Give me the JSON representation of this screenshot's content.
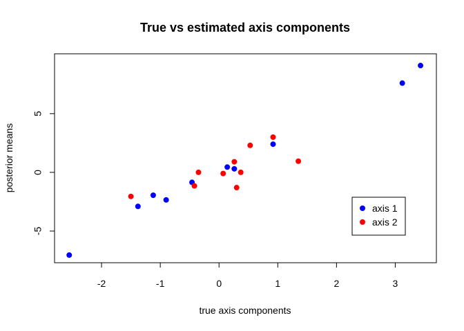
{
  "chart_data": {
    "type": "scatter",
    "title": "True vs estimated axis components",
    "xlabel": "true axis components",
    "ylabel": "posterior means",
    "xlim": [
      -2.8,
      3.7
    ],
    "ylim": [
      -7.7,
      10.1
    ],
    "x_ticks": [
      -2,
      -1,
      0,
      1,
      2,
      3
    ],
    "x_tick_labels": [
      "-2",
      "-1",
      "0",
      "1",
      "2",
      "3"
    ],
    "y_ticks": [
      -5,
      0,
      5
    ],
    "y_tick_labels": [
      "-5",
      "0",
      "5"
    ],
    "grid": false,
    "legend_position": "bottom-right",
    "series": [
      {
        "name": "axis 1",
        "color": "#0000ff",
        "points": [
          {
            "x": -2.55,
            "y": -7.05
          },
          {
            "x": -1.38,
            "y": -2.9
          },
          {
            "x": -1.12,
            "y": -1.95
          },
          {
            "x": -0.9,
            "y": -2.35
          },
          {
            "x": -0.46,
            "y": -0.85
          },
          {
            "x": 0.14,
            "y": 0.45
          },
          {
            "x": 0.26,
            "y": 0.3
          },
          {
            "x": 0.92,
            "y": 2.4
          },
          {
            "x": 3.12,
            "y": 7.6
          },
          {
            "x": 3.43,
            "y": 9.1
          }
        ]
      },
      {
        "name": "axis 2",
        "color": "#ff0000",
        "points": [
          {
            "x": -1.5,
            "y": -2.05
          },
          {
            "x": -0.42,
            "y": -1.15
          },
          {
            "x": -0.35,
            "y": 0.0
          },
          {
            "x": 0.07,
            "y": -0.1
          },
          {
            "x": 0.26,
            "y": 0.9
          },
          {
            "x": 0.3,
            "y": -1.3
          },
          {
            "x": 0.37,
            "y": 0.0
          },
          {
            "x": 0.53,
            "y": 2.3
          },
          {
            "x": 0.92,
            "y": 3.0
          },
          {
            "x": 1.35,
            "y": 0.95
          }
        ]
      }
    ]
  }
}
